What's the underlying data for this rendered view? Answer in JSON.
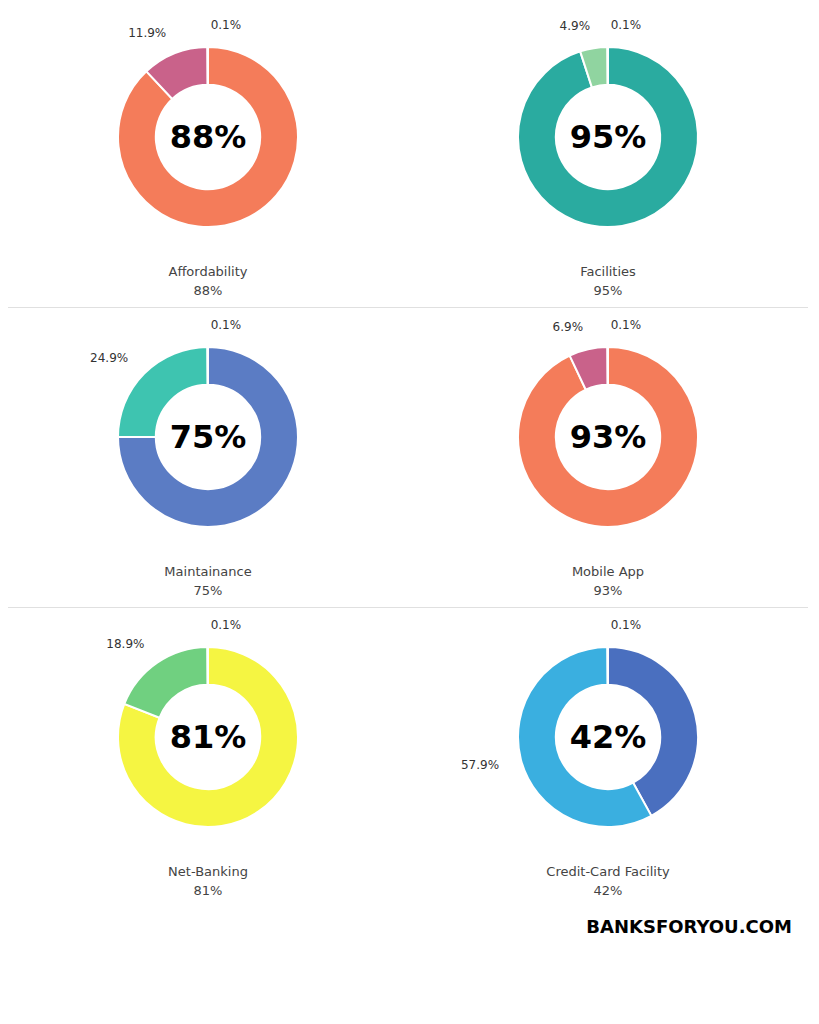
{
  "annotations": [
    "BANKSFORYOU.COM"
  ],
  "chart_data": [
    {
      "type": "pie",
      "title": "Affordability",
      "subtitle": "88%",
      "annotations": [
        "88%"
      ],
      "values": [
        88.0,
        11.9,
        0.1
      ],
      "value_labels": [
        null,
        "11.9%",
        "0.1%"
      ],
      "colors": [
        "#F47C5A",
        "#C9628A",
        "#F0A868"
      ],
      "data_labels": true
    },
    {
      "type": "pie",
      "title": "Facilities",
      "subtitle": "95%",
      "annotations": [
        "95%"
      ],
      "values": [
        95.0,
        4.9,
        0.1
      ],
      "value_labels": [
        null,
        "4.9%",
        "0.1%"
      ],
      "colors": [
        "#2AABA0",
        "#90D4A0",
        "#AAAAAA"
      ],
      "data_labels": true
    },
    {
      "type": "pie",
      "title": "Maintainance",
      "subtitle": "75%",
      "annotations": [
        "75%"
      ],
      "values": [
        75.0,
        24.9,
        0.1
      ],
      "value_labels": [
        null,
        "24.9%",
        "0.1%"
      ],
      "colors": [
        "#5B7CC4",
        "#3EC4B0",
        "#7090D0"
      ],
      "data_labels": true
    },
    {
      "type": "pie",
      "title": "Mobile App",
      "subtitle": "93%",
      "annotations": [
        "93%"
      ],
      "values": [
        93.0,
        6.9,
        0.1
      ],
      "value_labels": [
        null,
        "6.9%",
        "0.1%"
      ],
      "colors": [
        "#F47C5A",
        "#C9628A",
        "#F0A868"
      ],
      "data_labels": true
    },
    {
      "type": "pie",
      "title": "Net-Banking",
      "subtitle": "81%",
      "annotations": [
        "81%"
      ],
      "values": [
        81.0,
        18.9,
        0.1
      ],
      "value_labels": [
        null,
        "18.9%",
        "0.1%"
      ],
      "colors": [
        "#F5F542",
        "#70D080",
        "#AAAAAA"
      ],
      "data_labels": true
    },
    {
      "type": "pie",
      "title": "Credit-Card Facility",
      "subtitle": "42%",
      "annotations": [
        "42%"
      ],
      "values": [
        42.0,
        57.9,
        0.1
      ],
      "value_labels": [
        null,
        "57.9%",
        "0.1%"
      ],
      "colors": [
        "#4A6FBF",
        "#3AAFE0",
        "#80A0D0"
      ],
      "data_labels": true
    }
  ]
}
